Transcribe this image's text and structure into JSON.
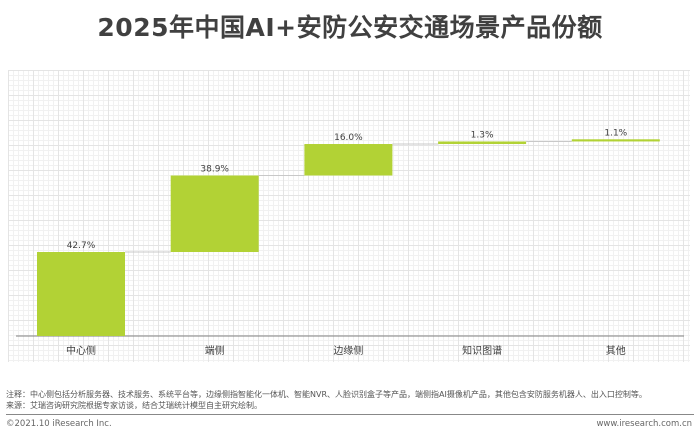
{
  "chart_data": {
    "type": "waterfall",
    "title": "2025年中国AI+安防公安交通场景产品份额",
    "categories": [
      "中心侧",
      "端侧",
      "边缘侧",
      "知识图谱",
      "其他"
    ],
    "values": [
      42.7,
      38.9,
      16.0,
      1.3,
      1.1
    ],
    "data_labels": [
      "42.7%",
      "38.9%",
      "16.0%",
      "1.3%",
      "1.1%"
    ],
    "unit": "%",
    "ylim": [
      0,
      100
    ],
    "grid": true,
    "bar_color": "#b2d235",
    "connector_color": "#c8c8c8"
  },
  "footer": {
    "note": "注释：中心侧包括分析服务器、技术服务、系统平台等，边缘侧指智能化一体机、智能NVR、人脸识别盒子等产品，端侧指AI摄像机产品，其他包含安防服务机器人、出入口控制等。",
    "source": "来源：艾瑞咨询研究院根据专家访谈，结合艾瑞统计模型自主研究绘制。",
    "copyright": "©2021.10 iResearch Inc.",
    "website": "www.iresearch.com.cn"
  }
}
